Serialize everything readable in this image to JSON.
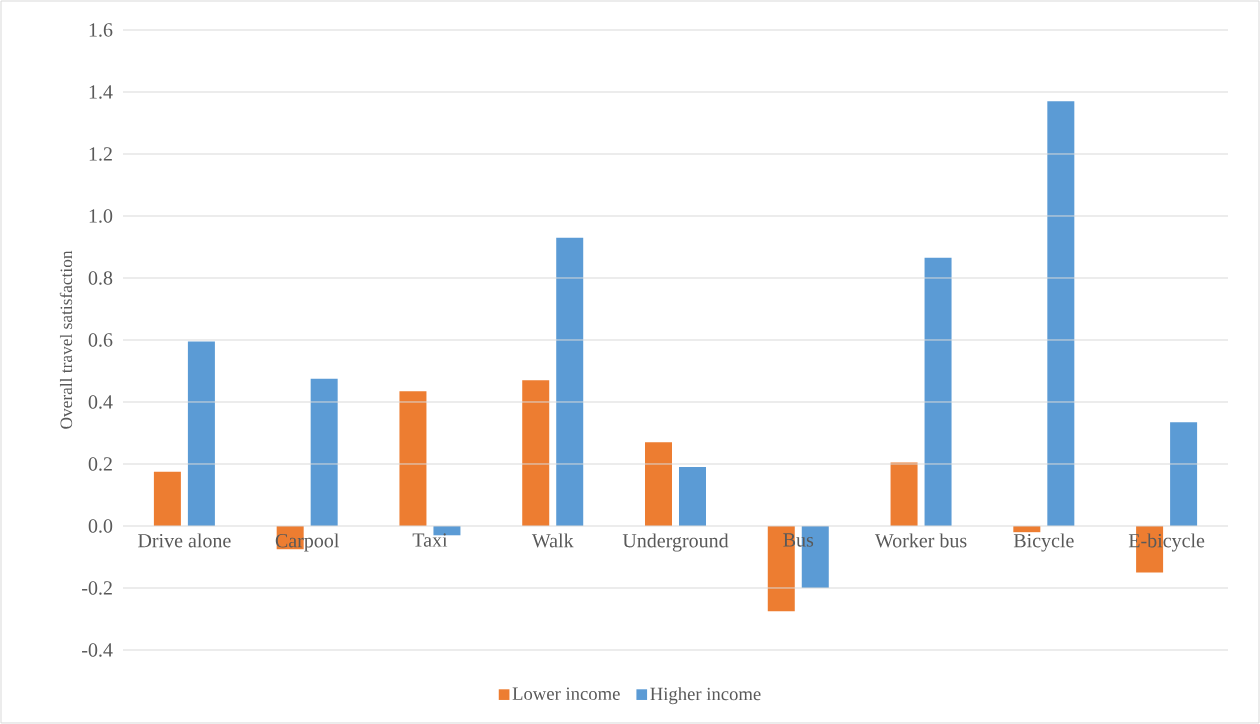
{
  "chart_data": {
    "type": "bar",
    "ylabel": "Overall travel satisfaction",
    "categories": [
      "Drive alone",
      "Carpool",
      "Taxi",
      "Walk",
      "Underground",
      "Bus",
      "Worker bus",
      "Bicycle",
      "E-bicycle"
    ],
    "series": [
      {
        "name": "Lower income",
        "color": "#ed7d31",
        "values": [
          0.175,
          -0.075,
          0.435,
          0.47,
          0.27,
          -0.275,
          0.205,
          -0.02,
          -0.15
        ]
      },
      {
        "name": "Higher income",
        "color": "#5b9bd5",
        "values": [
          0.595,
          0.475,
          -0.03,
          0.93,
          0.19,
          -0.2,
          0.865,
          1.37,
          0.335
        ]
      }
    ],
    "ylim": [
      -0.4,
      1.6
    ],
    "yticks": [
      {
        "value": -0.4,
        "label": "-0.4"
      },
      {
        "value": -0.2,
        "label": "-0.2"
      },
      {
        "value": 0,
        "label": "0.0"
      },
      {
        "value": 0.2,
        "label": "0.2"
      },
      {
        "value": 0.4,
        "label": "0.4"
      },
      {
        "value": 0.6,
        "label": "0.6"
      },
      {
        "value": 0.8,
        "label": "0.8"
      },
      {
        "value": 1.0,
        "label": "1.0"
      },
      {
        "value": 1.2,
        "label": "1.2"
      },
      {
        "value": 1.4,
        "label": "1.4"
      },
      {
        "value": 1.6,
        "label": "1.6"
      }
    ],
    "grid": "y",
    "legend": "bottom"
  }
}
